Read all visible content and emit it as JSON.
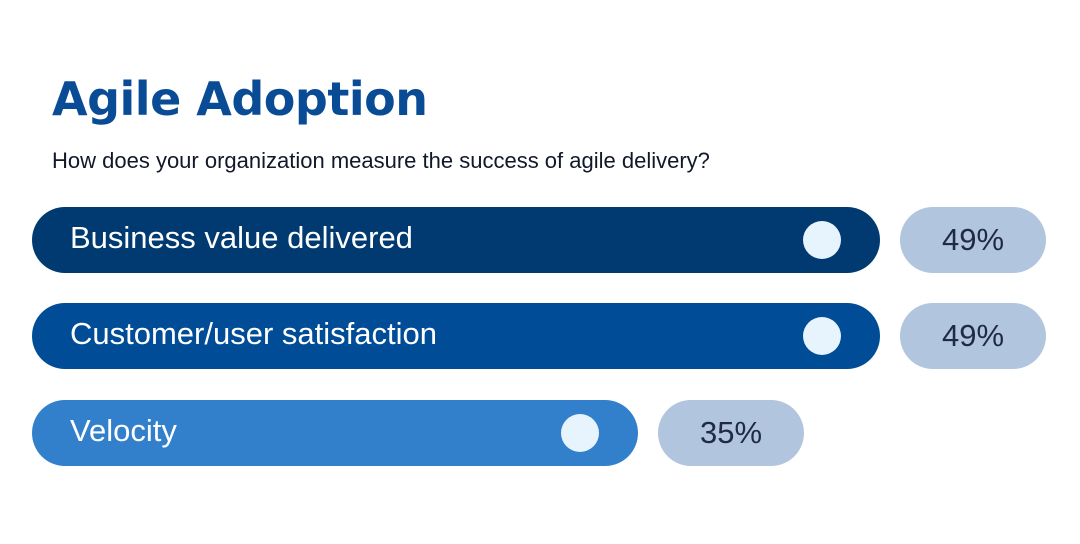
{
  "chart_data": {
    "type": "bar",
    "orientation": "horizontal",
    "title": "Agile Adoption",
    "subtitle": "How does your organization measure the success of agile delivery?",
    "categories": [
      "Business value delivered",
      "Customer/user satisfaction",
      "Velocity"
    ],
    "values": [
      49,
      49,
      35
    ],
    "value_labels": [
      "49%",
      "49%",
      "35%"
    ],
    "unit": "%",
    "xlim": [
      0,
      100
    ],
    "grid": false,
    "legend": "none",
    "bar_colors": [
      "#003a70",
      "#004c97",
      "#3280cc"
    ],
    "knob_color": "#e8f4fd",
    "label_pill_color": "#b2c5de",
    "title_color": "#0a4b96"
  }
}
